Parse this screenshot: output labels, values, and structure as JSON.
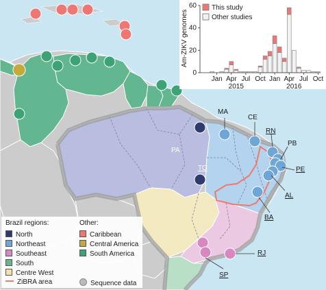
{
  "colors": {
    "ocean": "#c9e6f2",
    "land": "#cccccc",
    "north": "#2f3a6e",
    "northeast": "#6fa6d8",
    "southeast": "#d987c0",
    "south": "#6ab58a",
    "centre_west": "#f2e4a8",
    "caribbean": "#ef7773",
    "central_america": "#c4a93b",
    "south_america": "#3ca377",
    "zibra": "#f0796a",
    "sequence": "#bbbbbb",
    "this_study": "#ef7773",
    "other_studies": "#f2f2f2"
  },
  "map": {
    "region_labels": {
      "pa": "PA",
      "to": "TO"
    },
    "site_labels": {
      "ma": "MA",
      "ce": "CE",
      "rn": "RN",
      "pb": "PB",
      "pe": "PE",
      "al": "AL",
      "ba": "BA",
      "rj": "RJ",
      "sp": "SP"
    }
  },
  "legend": {
    "brazil_title": "Brazil regions:",
    "brazil_regions": [
      "North",
      "Northeast",
      "Southeast",
      "South",
      "Centre West"
    ],
    "other_title": "Other:",
    "other_regions": [
      "Caribbean",
      "Central America",
      "South America"
    ],
    "zibra_label": "ZiBRA area",
    "sequence_label": "Sequence data"
  },
  "chart_data": {
    "type": "bar",
    "stacked": true,
    "ylabel": "Am-ZIKV genomes",
    "ylim": [
      0,
      60
    ],
    "yticks": [
      0,
      20,
      40,
      60
    ],
    "x_tick_labels": [
      "Jan",
      "Apr",
      "Jul",
      "Oct",
      "Jan",
      "Apr",
      "Jul",
      "Oct"
    ],
    "year_labels": [
      "2015",
      "2016"
    ],
    "categories": [
      "Oct14",
      "Nov14",
      "Dec14",
      "Jan15",
      "Feb15",
      "Mar15",
      "Apr15",
      "May15",
      "Jun15",
      "Jul15",
      "Aug15",
      "Sep15",
      "Oct15",
      "Nov15",
      "Dec15",
      "Jan16",
      "Feb16",
      "Mar16",
      "Apr16",
      "May16",
      "Jun16",
      "Jul16",
      "Aug16",
      "Sep16",
      "Oct16"
    ],
    "series": [
      {
        "name": "This study",
        "values": [
          0,
          0,
          0,
          0,
          0,
          1,
          3,
          1,
          0,
          0,
          0,
          0,
          1,
          3,
          4,
          7,
          5,
          3,
          6,
          0,
          1,
          0,
          0,
          0,
          0
        ]
      },
      {
        "name": "Other studies",
        "values": [
          0,
          0,
          1,
          0,
          1,
          3,
          7,
          2,
          1,
          1,
          1,
          1,
          5,
          12,
          15,
          26,
          18,
          10,
          52,
          20,
          4,
          2,
          2,
          1,
          1
        ]
      }
    ]
  }
}
